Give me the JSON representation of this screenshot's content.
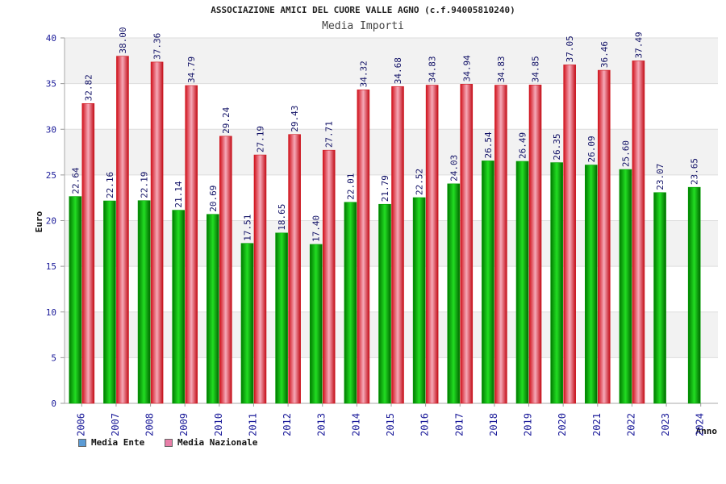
{
  "chart_data": {
    "type": "bar",
    "title": "ASSOCIAZIONE AMICI DEL CUORE VALLE AGNO (c.f.94005810240)",
    "subtitle": "Media Importi",
    "xlabel": "Anno",
    "ylabel": "Euro",
    "ylim": [
      0,
      40
    ],
    "yticks": [
      "0",
      "5",
      "10",
      "15",
      "20",
      "25",
      "30",
      "35",
      "40"
    ],
    "categories": [
      "2006",
      "2007",
      "2008",
      "2009",
      "2010",
      "2011",
      "2012",
      "2013",
      "2014",
      "2015",
      "2016",
      "2017",
      "2018",
      "2019",
      "2020",
      "2021",
      "2022",
      "2023",
      "2024"
    ],
    "series": [
      {
        "name": "Media Ente",
        "color": "#00b400",
        "values": [
          22.64,
          22.16,
          22.19,
          21.14,
          20.69,
          17.51,
          18.65,
          17.4,
          22.01,
          21.79,
          22.52,
          24.03,
          26.54,
          26.49,
          26.35,
          26.09,
          25.6,
          23.07,
          23.65
        ],
        "labels": [
          "22.64",
          "22.16",
          "22.19",
          "21.14",
          "20.69",
          "17.51",
          "18.65",
          "17.40",
          "22.01",
          "21.79",
          "22.52",
          "24.03",
          "26.54",
          "26.49",
          "26.35",
          "26.09",
          "25.60",
          "23.07",
          "23.65"
        ]
      },
      {
        "name": "Media Nazionale",
        "color": "#e8242c",
        "values": [
          32.82,
          38.0,
          37.36,
          34.79,
          29.24,
          27.19,
          29.43,
          27.71,
          34.32,
          34.68,
          34.83,
          34.94,
          34.83,
          34.85,
          37.05,
          36.46,
          37.49,
          null,
          null
        ],
        "labels": [
          "32.82",
          "38.00",
          "37.36",
          "34.79",
          "29.24",
          "27.19",
          "29.43",
          "27.71",
          "34.32",
          "34.68",
          "34.83",
          "34.94",
          "34.83",
          "34.85",
          "37.05",
          "36.46",
          "37.49",
          null,
          null
        ]
      }
    ],
    "legend": [
      {
        "label": "Media Ente",
        "color": "#5b9bd5"
      },
      {
        "label": "Media Nazionale",
        "color": "#e87fa8"
      }
    ],
    "grid": true,
    "legend_position": "bottom-left"
  }
}
